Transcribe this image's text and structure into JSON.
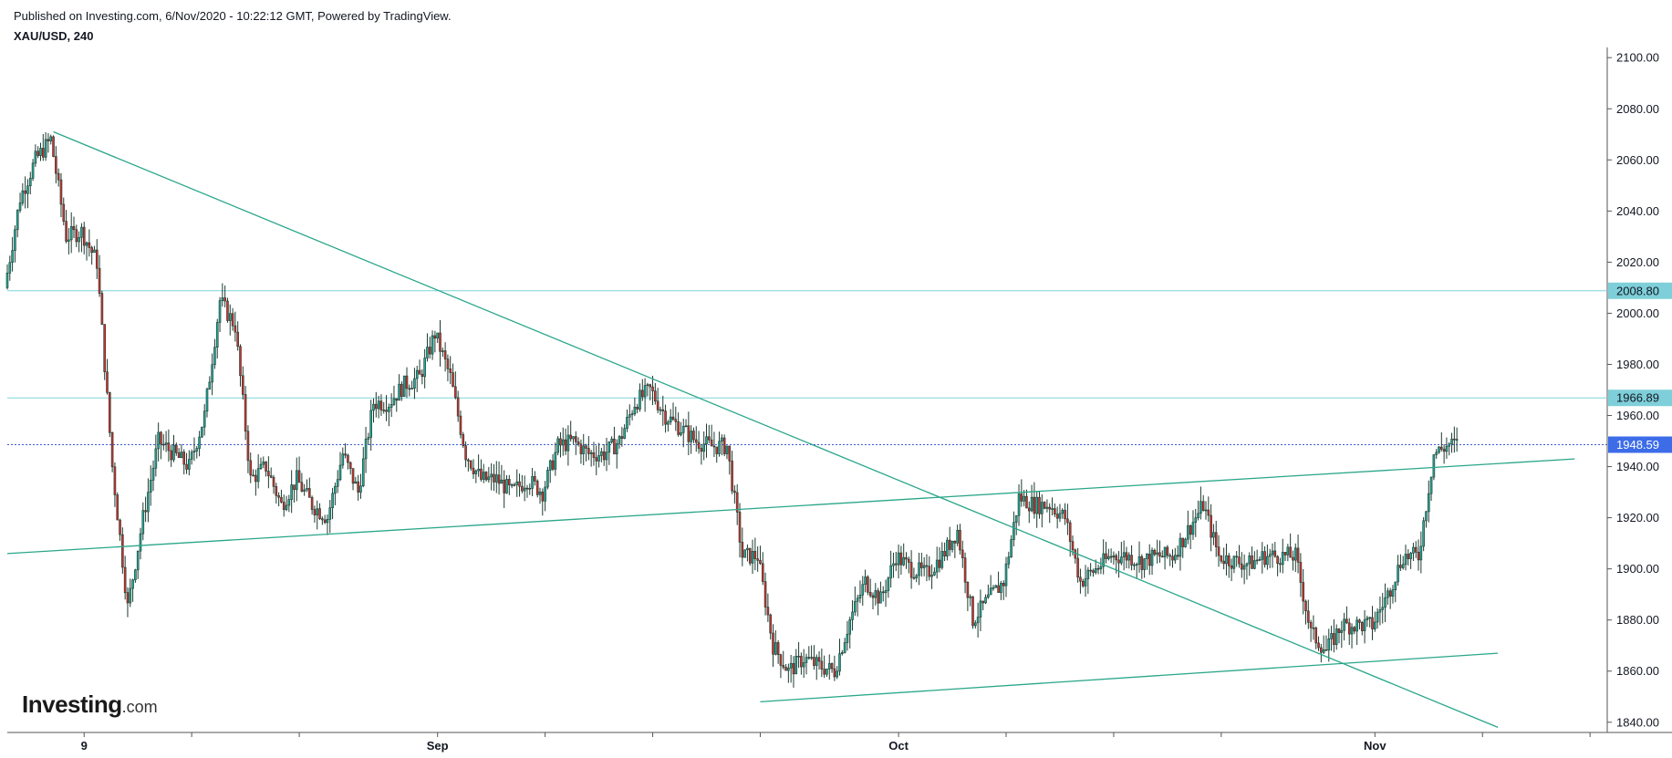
{
  "header": {
    "published": "Published on Investing.com, 6/Nov/2020 - 10:22:12 GMT, Powered by TradingView.",
    "symbol": "XAU/USD, 240"
  },
  "logo": {
    "brand": "Investing",
    "suffix": ".com"
  },
  "colors": {
    "up": "#26a69a",
    "down": "#d32f2f",
    "outline": "#1b3b2f",
    "trendline": "#2aa68a",
    "level_line": "#7fd3dc",
    "level_tag": "#7ecfd9",
    "price_line": "#3b5bd9",
    "price_tag": "#3d6ce8"
  },
  "chart_data": {
    "type": "candlestick",
    "title": "XAU/USD, 240",
    "yaxis": {
      "ticks": [
        1840,
        1860,
        1880,
        1900,
        1920,
        1940,
        1960,
        1980,
        2000,
        2020,
        2040,
        2060,
        2080,
        2100
      ],
      "tick_labels": [
        "1840.00",
        "1860.00",
        "1880.00",
        "1900.00",
        "1920.00",
        "1940.00",
        "1960.00",
        "1980.00",
        "2000.00",
        "2020.00",
        "2040.00",
        "2060.00",
        "2080.00",
        "2100.00"
      ],
      "range": [
        1836,
        2104
      ],
      "position": "right"
    },
    "xaxis": {
      "range": [
        "2020-08-04",
        "2020-11-16"
      ],
      "labels": [
        {
          "date": "2020-08-09",
          "text": "9"
        },
        {
          "date": "2020-09-01",
          "text": "Sep"
        },
        {
          "date": "2020-10-01",
          "text": "Oct"
        },
        {
          "date": "2020-11-01",
          "text": "Nov"
        }
      ],
      "minor_ticks": [
        "2020-08-16",
        "2020-08-23",
        "2020-09-08",
        "2020-09-15",
        "2020-09-22",
        "2020-10-08",
        "2020-10-15",
        "2020-10-22",
        "2020-11-08",
        "2020-11-15"
      ]
    },
    "price_path": [
      [
        "2020-08-04",
        2010
      ],
      [
        "2020-08-05",
        2045
      ],
      [
        "2020-08-06",
        2060
      ],
      [
        "2020-08-07",
        2068
      ],
      [
        "2020-08-08",
        2030
      ],
      [
        "2020-08-09",
        2032
      ],
      [
        "2020-08-10",
        2020
      ],
      [
        "2020-08-11",
        1940
      ],
      [
        "2020-08-12",
        1885
      ],
      [
        "2020-08-13",
        1920
      ],
      [
        "2020-08-14",
        1950
      ],
      [
        "2020-08-15",
        1945
      ],
      [
        "2020-08-16",
        1940
      ],
      [
        "2020-08-17",
        1960
      ],
      [
        "2020-08-18",
        2005
      ],
      [
        "2020-08-19",
        1995
      ],
      [
        "2020-08-20",
        1935
      ],
      [
        "2020-08-21",
        1940
      ],
      [
        "2020-08-22",
        1925
      ],
      [
        "2020-08-23",
        1935
      ],
      [
        "2020-08-24",
        1925
      ],
      [
        "2020-08-25",
        1920
      ],
      [
        "2020-08-26",
        1945
      ],
      [
        "2020-08-27",
        1930
      ],
      [
        "2020-08-28",
        1965
      ],
      [
        "2020-08-29",
        1965
      ],
      [
        "2020-08-30",
        1972
      ],
      [
        "2020-08-31",
        1975
      ],
      [
        "2020-09-01",
        1992
      ],
      [
        "2020-09-02",
        1975
      ],
      [
        "2020-09-03",
        1945
      ],
      [
        "2020-09-04",
        1935
      ],
      [
        "2020-09-05",
        1935
      ],
      [
        "2020-09-06",
        1930
      ],
      [
        "2020-09-07",
        1935
      ],
      [
        "2020-09-08",
        1930
      ],
      [
        "2020-09-09",
        1948
      ],
      [
        "2020-09-10",
        1950
      ],
      [
        "2020-09-11",
        1945
      ],
      [
        "2020-09-12",
        1945
      ],
      [
        "2020-09-13",
        1950
      ],
      [
        "2020-09-14",
        1965
      ],
      [
        "2020-09-15",
        1970
      ],
      [
        "2020-09-16",
        1960
      ],
      [
        "2020-09-17",
        1955
      ],
      [
        "2020-09-18",
        1950
      ],
      [
        "2020-09-19",
        1948
      ],
      [
        "2020-09-20",
        1948
      ],
      [
        "2020-09-21",
        1905
      ],
      [
        "2020-09-22",
        1905
      ],
      [
        "2020-09-23",
        1870
      ],
      [
        "2020-09-24",
        1860
      ],
      [
        "2020-09-25",
        1865
      ],
      [
        "2020-09-26",
        1862
      ],
      [
        "2020-09-27",
        1860
      ],
      [
        "2020-09-28",
        1880
      ],
      [
        "2020-09-29",
        1895
      ],
      [
        "2020-09-30",
        1888
      ],
      [
        "2020-10-01",
        1905
      ],
      [
        "2020-10-02",
        1900
      ],
      [
        "2020-10-03",
        1898
      ],
      [
        "2020-10-04",
        1905
      ],
      [
        "2020-10-05",
        1915
      ],
      [
        "2020-10-06",
        1880
      ],
      [
        "2020-10-07",
        1888
      ],
      [
        "2020-10-08",
        1895
      ],
      [
        "2020-10-09",
        1928
      ],
      [
        "2020-10-10",
        1925
      ],
      [
        "2020-10-11",
        1925
      ],
      [
        "2020-10-12",
        1920
      ],
      [
        "2020-10-13",
        1895
      ],
      [
        "2020-10-14",
        1900
      ],
      [
        "2020-10-15",
        1905
      ],
      [
        "2020-10-16",
        1905
      ],
      [
        "2020-10-17",
        1903
      ],
      [
        "2020-10-18",
        1905
      ],
      [
        "2020-10-19",
        1905
      ],
      [
        "2020-10-20",
        1915
      ],
      [
        "2020-10-21",
        1925
      ],
      [
        "2020-10-22",
        1905
      ],
      [
        "2020-10-23",
        1903
      ],
      [
        "2020-10-24",
        1902
      ],
      [
        "2020-10-25",
        1905
      ],
      [
        "2020-10-26",
        1905
      ],
      [
        "2020-10-27",
        1905
      ],
      [
        "2020-10-28",
        1875
      ],
      [
        "2020-10-29",
        1868
      ],
      [
        "2020-10-30",
        1878
      ],
      [
        "2020-10-31",
        1878
      ],
      [
        "2020-11-01",
        1878
      ],
      [
        "2020-11-02",
        1890
      ],
      [
        "2020-11-03",
        1905
      ],
      [
        "2020-11-04",
        1905
      ],
      [
        "2020-11-05",
        1945
      ],
      [
        "2020-11-06",
        1948.59
      ]
    ],
    "levels": [
      {
        "value": 2008.8,
        "label": "2008.80",
        "kind": "horizontal"
      },
      {
        "value": 1966.89,
        "label": "1966.89",
        "kind": "horizontal"
      },
      {
        "value": 1948.59,
        "label": "1948.59",
        "kind": "last-price"
      }
    ],
    "trendlines": [
      {
        "name": "descending-resistance",
        "from": [
          "2020-08-07",
          2071
        ],
        "to": [
          "2020-11-09",
          1838
        ]
      },
      {
        "name": "rising-support-long",
        "from": [
          "2020-08-04",
          1906
        ],
        "to": [
          "2020-11-14",
          1943
        ]
      },
      {
        "name": "rising-support-short",
        "from": [
          "2020-09-22",
          1848
        ],
        "to": [
          "2020-11-09",
          1867
        ]
      }
    ],
    "grid": false,
    "legend": "none"
  }
}
